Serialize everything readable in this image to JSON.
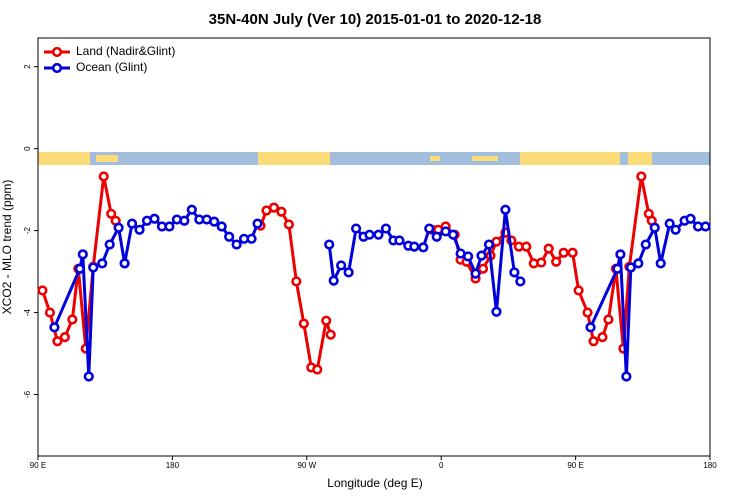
{
  "chart_data": {
    "type": "line",
    "title": "35N-40N July (Ver 10)   2015-01-01 to 2020-12-18",
    "xlabel": "Longitude (deg E)",
    "ylabel": "XCO2 - MLO trend (ppm)",
    "xlim": [
      90,
      540
    ],
    "ylim": [
      -7.5,
      2.7
    ],
    "xticks": [
      {
        "value": 90,
        "label": "90 E"
      },
      180,
      {
        "value": 270,
        "label": "90 W"
      },
      {
        "value": 360,
        "label": "0"
      },
      {
        "value": 450,
        "label": "90 E"
      },
      {
        "value": 540,
        "label": "180"
      }
    ],
    "yticks": [
      2,
      0,
      -2,
      -4,
      -6
    ],
    "legend": "top-left",
    "series": [
      {
        "name": "Land (Nadir&Glint)",
        "color": "#ee0000",
        "x": [
          93,
          98,
          103,
          108,
          113,
          117,
          122,
          127,
          134,
          139,
          142,
          null,
          239,
          243,
          248,
          253,
          258,
          263,
          268,
          273,
          277,
          283,
          286,
          null,
          354,
          358,
          363,
          369,
          373,
          377,
          383,
          388,
          393,
          397,
          403,
          407,
          412,
          417,
          422,
          427,
          432,
          437,
          442,
          448,
          452,
          458,
          462,
          468,
          472,
          477,
          482,
          486,
          494,
          499,
          501
        ],
        "values": [
          -3.46,
          -4.0,
          -4.7,
          -4.6,
          -4.17,
          -2.93,
          -4.88,
          -2.88,
          -0.68,
          -1.59,
          -1.76,
          null,
          -1.88,
          -1.51,
          -1.44,
          -1.54,
          -1.85,
          -3.24,
          -4.27,
          -5.34,
          -5.39,
          -4.2,
          -4.54,
          null,
          -1.98,
          -1.98,
          -1.9,
          -2.1,
          -2.71,
          -2.76,
          -3.17,
          -2.93,
          -2.61,
          -2.27,
          -2.05,
          -2.24,
          -2.39,
          -2.39,
          -2.8,
          -2.78,
          -2.44,
          -2.76,
          -2.54,
          -2.54,
          -3.46,
          -4.0,
          -4.7,
          -4.6,
          -4.17,
          -2.93,
          -4.88,
          -2.88,
          -0.68,
          -1.59,
          -1.76
        ]
      },
      {
        "name": "Ocean (Glint)",
        "color": "#0000dd",
        "x": [
          101,
          118,
          120,
          124,
          127,
          133,
          138,
          144,
          148,
          153,
          158,
          163,
          168,
          173,
          178,
          183,
          188,
          193,
          198,
          203,
          208,
          213,
          218,
          223,
          228,
          233,
          237,
          null,
          285,
          288,
          293,
          298,
          303,
          308,
          312,
          318,
          323,
          328,
          332,
          338,
          342,
          348,
          352,
          357,
          363,
          368,
          373,
          378,
          383,
          387,
          392,
          397,
          403,
          409,
          413,
          null,
          460,
          478,
          480,
          484,
          487,
          492,
          497,
          503,
          507,
          513,
          517,
          523,
          527,
          532,
          537
        ],
        "values": [
          -4.36,
          -2.93,
          -2.58,
          -5.56,
          -2.9,
          -2.8,
          -2.34,
          -1.93,
          -2.8,
          -1.83,
          -1.98,
          -1.76,
          -1.71,
          -1.9,
          -1.9,
          -1.73,
          -1.76,
          -1.49,
          -1.73,
          -1.73,
          -1.78,
          -1.9,
          -2.15,
          -2.34,
          -2.2,
          -2.2,
          -1.83,
          null,
          -2.34,
          -3.22,
          -2.85,
          -3.02,
          -1.95,
          -2.15,
          -2.1,
          -2.1,
          -1.95,
          -2.24,
          -2.24,
          -2.37,
          -2.39,
          -2.41,
          -1.95,
          -2.15,
          -2.02,
          -2.1,
          -2.56,
          -2.63,
          -3.05,
          -2.61,
          -2.34,
          -3.98,
          -1.49,
          -3.02,
          -3.24,
          null,
          -4.36,
          -2.93,
          -2.58,
          -5.56,
          -2.9,
          -2.8,
          -2.34,
          -1.93,
          -2.8,
          -1.83,
          -1.98,
          -1.76,
          -1.71,
          -1.9,
          -1.9
        ]
      }
    ]
  }
}
